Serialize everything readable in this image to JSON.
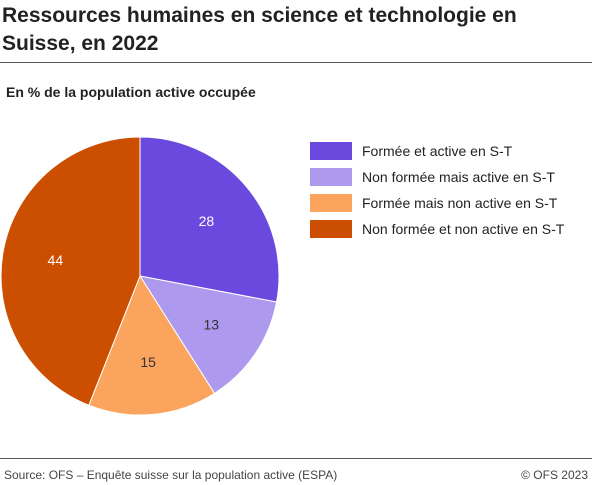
{
  "chart_data": {
    "type": "pie",
    "title": "Ressources humaines en science et technologie en Suisse, en 2022",
    "subtitle": "En % de la population active occupée",
    "slices": [
      {
        "label": "Formée et active en S-T",
        "value": 28,
        "color": "#6c49de"
      },
      {
        "label": "Non formée mais active en S-T",
        "value": 13,
        "color": "#ad99ed"
      },
      {
        "label": "Formée mais non active en S-T",
        "value": 15,
        "color": "#fba45e"
      },
      {
        "label": "Non formée et non active en S-T",
        "value": 44,
        "color": "#cc4e00"
      }
    ],
    "legend_position": "right"
  },
  "footer": {
    "source": "Source: OFS – Enquête suisse sur la population active (ESPA)",
    "copyright": "© OFS 2023"
  }
}
